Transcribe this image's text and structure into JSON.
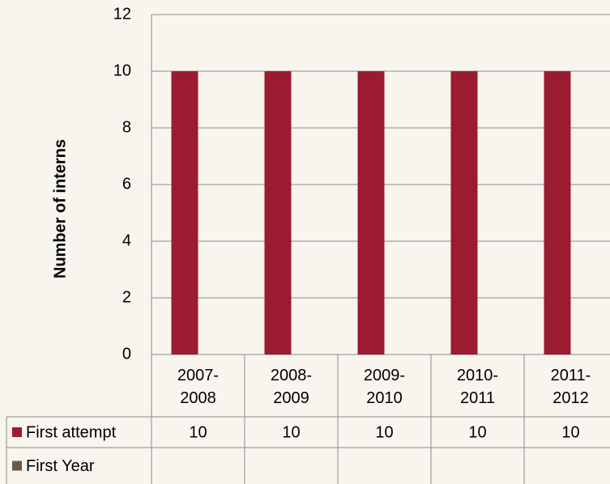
{
  "chart_data": {
    "type": "bar",
    "y_label": "Number of interns",
    "categories": [
      "2007-2008",
      "2008-2009",
      "2009-2010",
      "2010-2011",
      "2011-2012"
    ],
    "series": [
      {
        "name": "First attempt",
        "color": "#9b1b30",
        "values": [
          10,
          10,
          10,
          10,
          10
        ]
      },
      {
        "name": "First Year",
        "color": "#6b5a48",
        "values": [
          null,
          null,
          null,
          null,
          null
        ]
      }
    ],
    "ylim": [
      0,
      12
    ],
    "yticks": [
      0,
      2,
      4,
      6,
      8,
      10,
      12
    ],
    "grid": true,
    "legend": "table"
  }
}
